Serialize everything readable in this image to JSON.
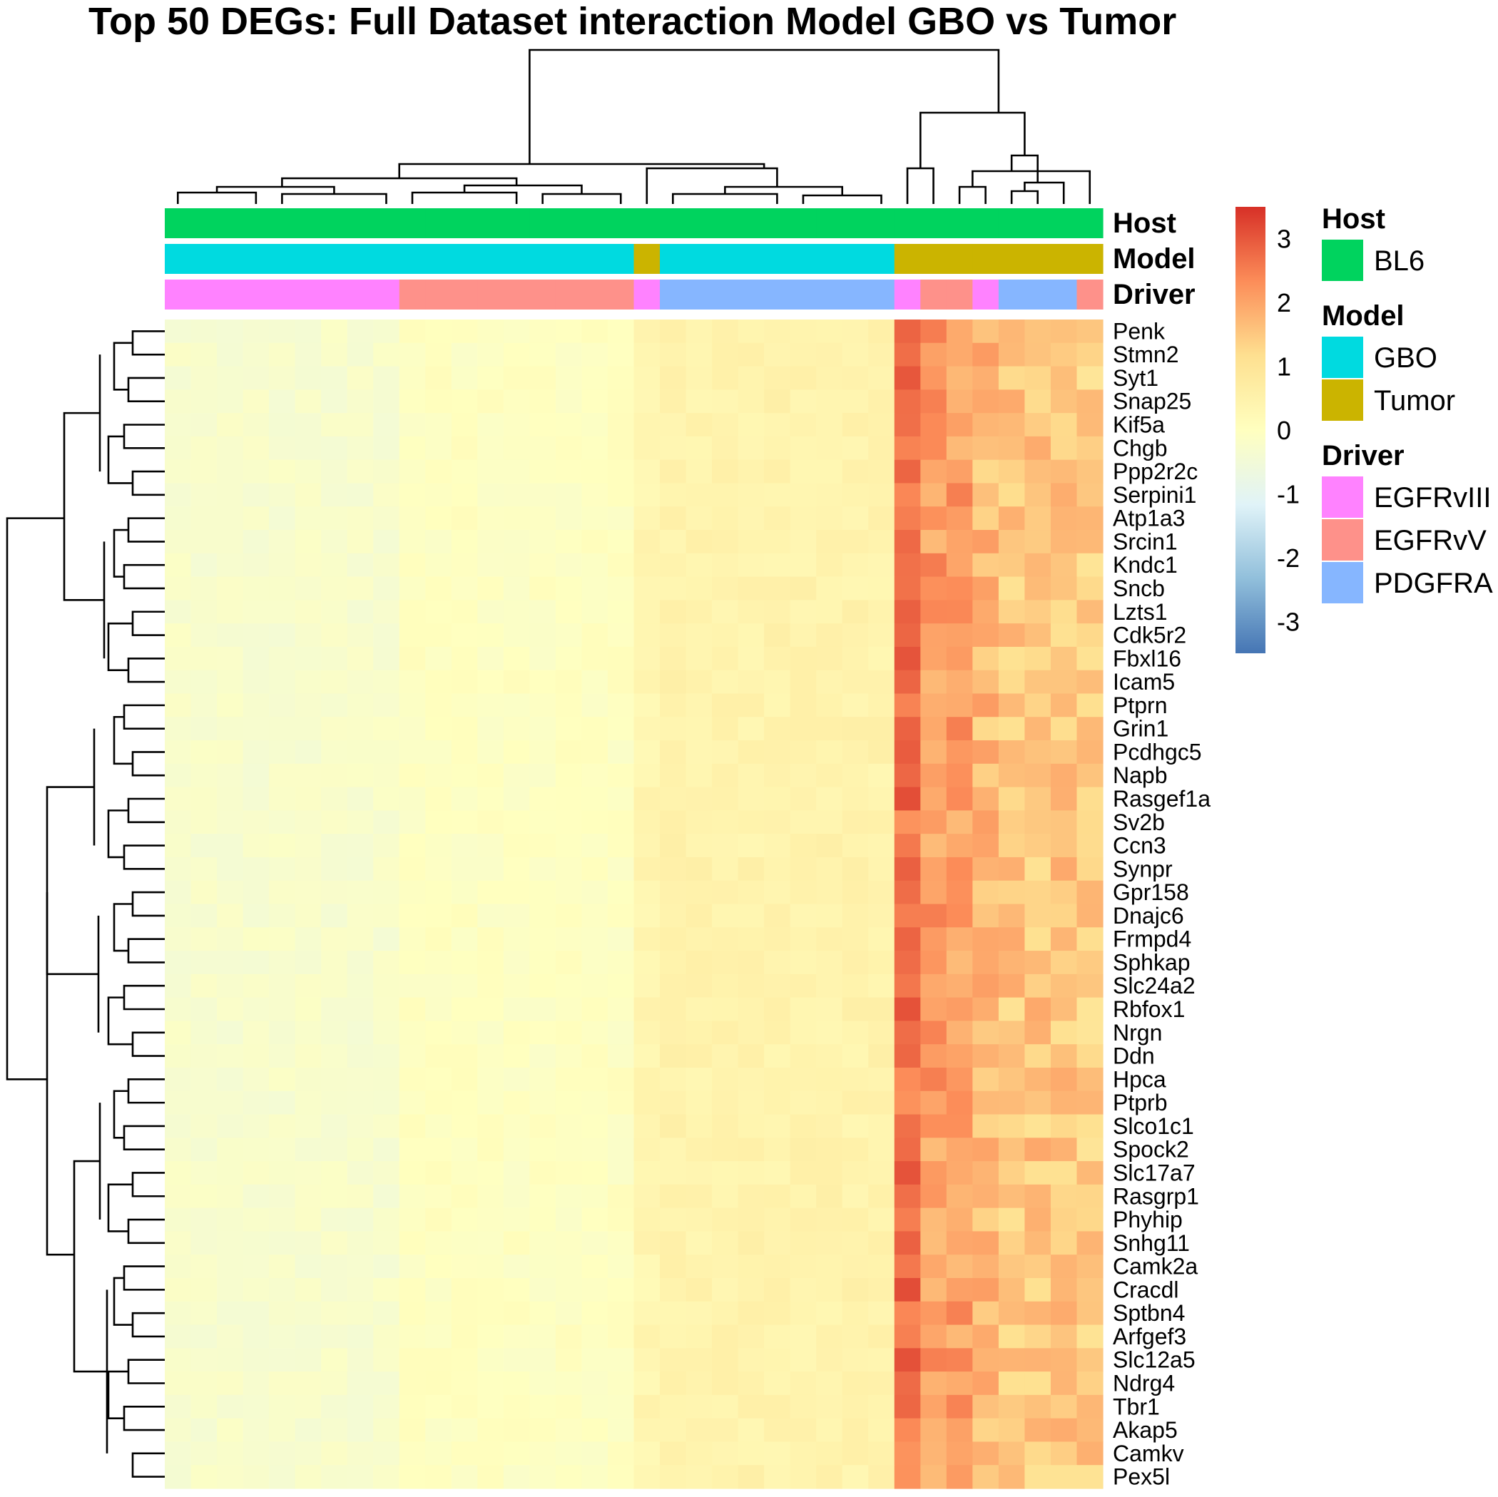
{
  "chart_data": {
    "type": "heatmap",
    "title": "Top 50 DEGs: Full Dataset interaction Model GBO vs Tumor",
    "rows": [
      "Penk",
      "Stmn2",
      "Syt1",
      "Snap25",
      "Kif5a",
      "Chgb",
      "Ppp2r2c",
      "Serpini1",
      "Atp1a3",
      "Srcin1",
      "Kndc1",
      "Sncb",
      "Lzts1",
      "Cdk5r2",
      "Fbxl16",
      "Icam5",
      "Ptprn",
      "Grin1",
      "Pcdhgc5",
      "Napb",
      "Rasgef1a",
      "Sv2b",
      "Ccn3",
      "Synpr",
      "Gpr158",
      "Dnajc6",
      "Frmpd4",
      "Sphkap",
      "Slc24a2",
      "Rbfox1",
      "Nrgn",
      "Ddn",
      "Hpca",
      "Ptprb",
      "Slco1c1",
      "Spock2",
      "Slc17a7",
      "Rasgrp1",
      "Phyhip",
      "Snhg11",
      "Camk2a",
      "Cracdl",
      "Sptbn4",
      "Arfgef3",
      "Slc12a5",
      "Ndrg4",
      "Tbr1",
      "Akap5",
      "Camkv",
      "Pex5l"
    ],
    "column_groups": [
      {
        "model": "GBO",
        "driver": "EGFRvIII",
        "n": 9,
        "base": -0.28
      },
      {
        "model": "GBO",
        "driver": "EGFRvV",
        "n": 9,
        "base": -0.05
      },
      {
        "model": "Tumor",
        "driver": "EGFRvIII",
        "n": 1,
        "base": 0.35
      },
      {
        "model": "GBO",
        "driver": "PDGFRA",
        "n": 9,
        "base": 0.45
      },
      {
        "model": "Tumor",
        "driver": "EGFRvIII",
        "n": 1,
        "base": 2.7
      },
      {
        "model": "Tumor",
        "driver": "EGFRvV",
        "n": 2,
        "base": 2.1
      },
      {
        "model": "Tumor",
        "driver": "EGFRvIII",
        "n": 1,
        "base": 1.7
      },
      {
        "model": "Tumor",
        "driver": "PDGFRA",
        "n": 3,
        "base": 1.5
      },
      {
        "model": "Tumor",
        "driver": "EGFRvV",
        "n": 1,
        "base": 1.4
      }
    ],
    "value_range": [
      -3.5,
      3.5
    ],
    "colorbar_ticks": [
      3,
      2,
      1,
      0,
      -1,
      -2,
      -3
    ],
    "color_stops": [
      "#4575b4",
      "#91bfdb",
      "#e0f3f8",
      "#ffffbf",
      "#fee090",
      "#fc8d59",
      "#d73027"
    ],
    "annotation_tracks": [
      "Host",
      "Model",
      "Driver"
    ],
    "legend": [
      {
        "title": "Host",
        "items": [
          {
            "label": "BL6",
            "color": "#00d35e"
          }
        ]
      },
      {
        "title": "Model",
        "items": [
          {
            "label": "GBO",
            "color": "#00dae0"
          },
          {
            "label": "Tumor",
            "color": "#cbb400"
          }
        ]
      },
      {
        "title": "Driver",
        "items": [
          {
            "label": "EGFRvIII",
            "color": "#ff82ff"
          },
          {
            "label": "EGFRvV",
            "color": "#fe918a"
          },
          {
            "label": "PDGFRA",
            "color": "#86b6ff"
          }
        ]
      }
    ],
    "host_color": "#00d35e"
  }
}
